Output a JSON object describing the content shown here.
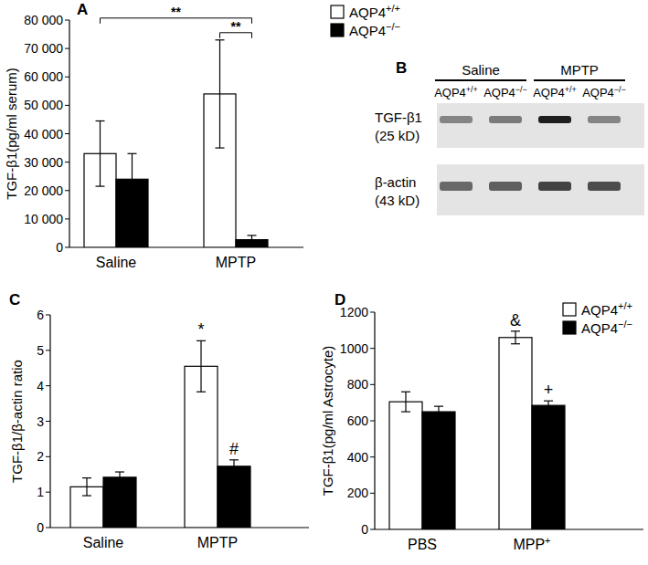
{
  "chart_data": [
    {
      "type": "bar",
      "panel": "A",
      "y_label": "TGF-β1(pg/ml serum)",
      "categories": [
        "Saline",
        "MPTP"
      ],
      "series": [
        {
          "name": "AQP4+/+",
          "color": "#ffffff",
          "values": [
            33000,
            54000
          ],
          "errors": [
            11500,
            19000
          ]
        },
        {
          "name": "AQP4−/−",
          "color": "#000000",
          "values": [
            24000,
            2700
          ],
          "errors": [
            9000,
            1500
          ]
        }
      ],
      "ylim": [
        0,
        80000
      ],
      "yticks": [
        0,
        {
          "value": 10000,
          "label": "10 000"
        },
        {
          "value": 20000,
          "label": "20 000"
        },
        {
          "value": 30000,
          "label": "30 000"
        },
        {
          "value": 40000,
          "label": "40 000"
        },
        {
          "value": 50000,
          "label": "50 000"
        },
        {
          "value": 60000,
          "label": "60 000"
        },
        {
          "value": 70000,
          "label": "70 000"
        },
        {
          "value": 80000,
          "label": "80 000"
        }
      ],
      "legend": "right",
      "annotations": [
        {
          "text": "**",
          "between": [
            [
              0,
              0
            ],
            [
              1,
              1
            ]
          ]
        },
        {
          "text": "**",
          "between": [
            [
              0,
              1
            ],
            [
              1,
              1
            ]
          ]
        }
      ]
    },
    {
      "type": "blot",
      "panel": "B",
      "groups": [
        {
          "name": "Saline",
          "lanes": 2
        },
        {
          "name": "MPTP",
          "lanes": 2
        }
      ],
      "lanes": [
        "AQP4+/+",
        "AQP4−/−",
        "AQP4+/+",
        "AQP4−/−"
      ],
      "rows": [
        {
          "name": "TGF-β1",
          "size": "(25 kD)",
          "values": [
            0.45,
            0.5,
            1,
            0.45
          ]
        },
        {
          "name": "β-actin",
          "size": "(43 kD)",
          "values": [
            0.6,
            0.65,
            0.8,
            0.75
          ]
        }
      ]
    },
    {
      "type": "bar",
      "panel": "C",
      "y_label": "TGF-β1/β-actin ratio",
      "categories": [
        "Saline",
        "MPTP"
      ],
      "series": [
        {
          "name": "AQP4+/+",
          "color": "#ffffff",
          "values": [
            1.15,
            4.55
          ],
          "errors": [
            0.25,
            0.72
          ]
        },
        {
          "name": "AQP4−/−",
          "color": "#000000",
          "values": [
            1.42,
            1.73
          ],
          "errors": [
            0.15,
            0.18
          ]
        }
      ],
      "ylim": [
        0,
        6
      ],
      "yticks": [
        0,
        1,
        2,
        3,
        4,
        5,
        6
      ],
      "annotations": [
        {
          "text": "*",
          "at": [
            0,
            1
          ]
        },
        {
          "text": "#",
          "at": [
            1,
            1
          ]
        }
      ]
    },
    {
      "type": "bar",
      "panel": "D",
      "y_label": "TGF-β1(pg/ml Astrocyte)",
      "categories": [
        "PBS",
        "MPP+"
      ],
      "series": [
        {
          "name": "AQP4+/+",
          "color": "#ffffff",
          "values": [
            705,
            1060
          ],
          "errors": [
            55,
            35
          ]
        },
        {
          "name": "AQP4−/−",
          "color": "#000000",
          "values": [
            650,
            685
          ],
          "errors": [
            30,
            25
          ]
        }
      ],
      "ylim": [
        0,
        1200
      ],
      "yticks": [
        0,
        200,
        400,
        600,
        800,
        1000,
        1200
      ],
      "legend": "top-right",
      "annotations": [
        {
          "text": "&",
          "at": [
            0,
            1
          ]
        },
        {
          "text": "+",
          "at": [
            1,
            1
          ]
        }
      ]
    }
  ]
}
